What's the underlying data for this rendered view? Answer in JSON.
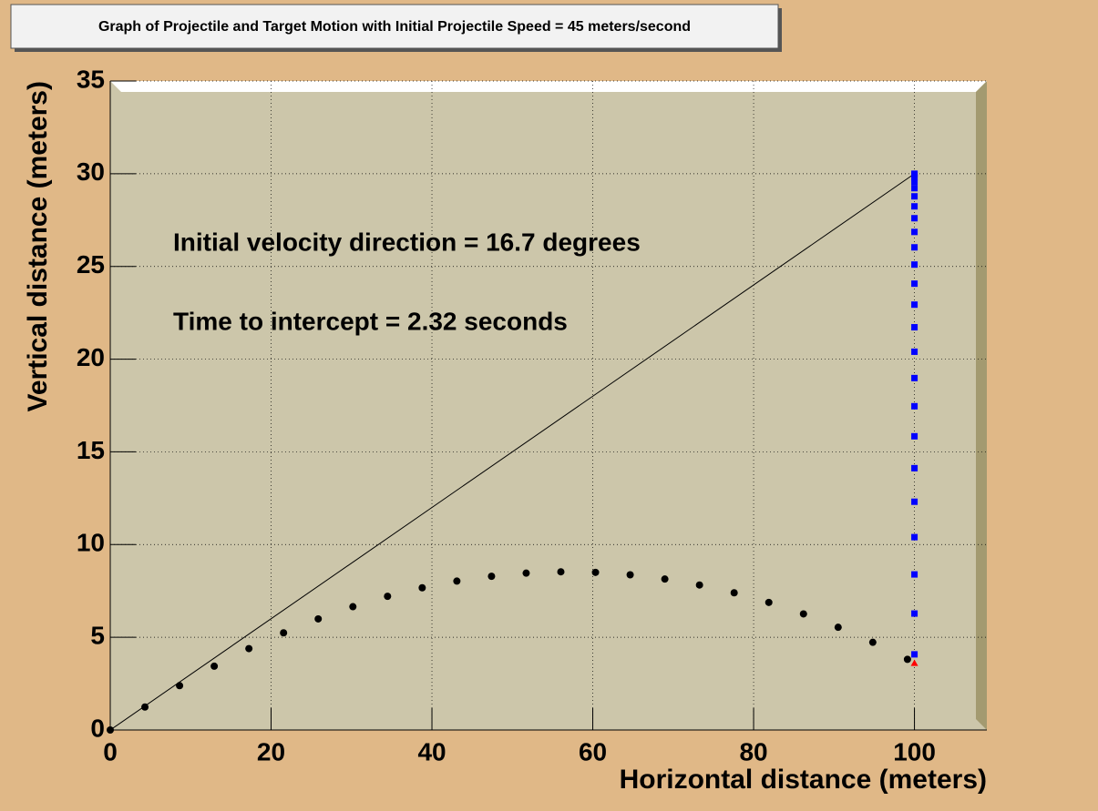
{
  "chart_data": {
    "type": "scatter",
    "title": "Graph of Projectile and Target Motion with Initial Projectile Speed = 45 meters/second",
    "annotations": [
      "Initial velocity direction = 16.7 degrees",
      "Time to intercept = 2.32 seconds"
    ],
    "x_label": "Horizontal distance (meters)",
    "y_label": "Vertical distance (meters)",
    "xlim": [
      0,
      109
    ],
    "ylim": [
      0,
      35
    ],
    "xticks": [
      0,
      20,
      40,
      60,
      80,
      100
    ],
    "yticks": [
      0,
      5,
      10,
      15,
      20,
      25,
      30,
      35
    ],
    "grid": true,
    "series": [
      {
        "marker": "line",
        "color": "#000000",
        "x": [
          0,
          100
        ],
        "values": [
          0,
          30
        ]
      },
      {
        "marker": "circle",
        "color": "#000000",
        "x": [
          0,
          4.31,
          8.62,
          12.93,
          17.24,
          21.55,
          25.86,
          30.17,
          34.48,
          38.79,
          43.1,
          47.41,
          51.72,
          56.03,
          60.34,
          64.65,
          68.96,
          73.27,
          77.58,
          81.89,
          86.2,
          90.51,
          94.82,
          99.13
        ],
        "values": [
          0,
          1.24,
          2.39,
          3.44,
          4.39,
          5.24,
          5.99,
          6.65,
          7.21,
          7.67,
          8.03,
          8.29,
          8.46,
          8.53,
          8.5,
          8.37,
          8.14,
          7.82,
          7.4,
          6.88,
          6.26,
          5.54,
          4.73,
          3.81
        ]
      },
      {
        "marker": "square",
        "color": "#0000ff",
        "x": [
          100,
          100,
          100,
          100,
          100,
          100,
          100,
          100,
          100,
          100,
          100,
          100,
          100,
          100,
          100,
          100,
          100,
          100,
          100,
          100,
          100,
          100,
          100,
          100
        ],
        "values": [
          30,
          29.95,
          29.8,
          29.56,
          29.22,
          28.78,
          28.24,
          27.6,
          26.86,
          26.03,
          25.1,
          24.07,
          22.94,
          21.72,
          20.4,
          18.98,
          17.46,
          15.84,
          14.12,
          12.31,
          10.4,
          8.39,
          6.28,
          4.08
        ]
      },
      {
        "marker": "triangle",
        "color": "#ff0000",
        "x": [
          100
        ],
        "values": [
          3.6
        ]
      }
    ],
    "background": "#e0b887",
    "frame_color": "#ccc6aa"
  }
}
